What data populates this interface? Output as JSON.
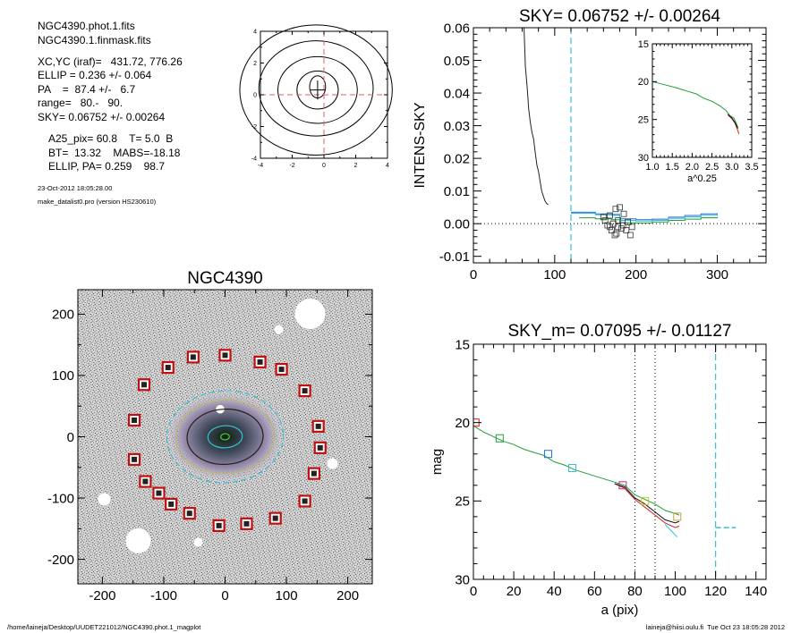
{
  "info": {
    "lines": [
      "NGC4390.phot.1.fits",
      "NGC4390.1.finmask.fits",
      "XC,YC (iraf)=   431.72, 776.26",
      "ELLIP = 0.236 +/- 0.064",
      "PA    =  87.4 +/-   6.7",
      "range=   80.-   90.",
      "SKY= 0.06752 +/- 0.00264",
      "A25_pix= 60.8    T= 5.0  B",
      "BT=  13.32    MABS=-18.18",
      "ELLIP, PA= 0.259    98.7"
    ],
    "date": "23-Oct-2012 18:05:28.00",
    "program": "make_datalist0.pro (version HS230610)"
  },
  "footer": {
    "path": "/home/laineja/Desktop/UUDET221012/NGC4390.phot.1_magplot",
    "user": "laineja@hiisi.oulu.fi  Tue Oct 23 18:05:28 2012"
  },
  "chart_data": [
    {
      "id": "contour",
      "type": "contour",
      "xlim": [
        -4,
        4
      ],
      "ylim": [
        -4,
        4
      ],
      "xticks": [
        -4,
        -2,
        0,
        2,
        4
      ],
      "yticks": [
        -4,
        -2,
        0,
        2,
        4
      ],
      "contours": [
        {
          "cx": -0.4,
          "cy": 0.5,
          "rx": 0.5,
          "ry": 0.7
        },
        {
          "cx": -0.4,
          "cy": 0.3,
          "rx": 1.3,
          "ry": 1.2
        },
        {
          "cx": -0.4,
          "cy": 0.3,
          "rx": 2.5,
          "ry": 2.1
        },
        {
          "cx": -0.5,
          "cy": 0.4,
          "rx": 3.6,
          "ry": 3.0
        },
        {
          "cx": -0.5,
          "cy": 0.3,
          "rx": 4.8,
          "ry": 4.1
        }
      ],
      "crosshair": [
        0,
        0
      ],
      "colors": {
        "line": "#000000",
        "cross": "#e06060"
      }
    },
    {
      "id": "sky",
      "type": "line",
      "title": "SKY= 0.06752 +/- 0.00264",
      "xlabel": "",
      "ylabel": "INTENS-SKY",
      "xlim": [
        0,
        360
      ],
      "ylim": [
        -0.012,
        0.06
      ],
      "xticks": [
        0,
        100,
        200,
        300
      ],
      "yticks": [
        -0.01,
        0.0,
        0.01,
        0.02,
        0.03,
        0.04,
        0.05,
        0.06
      ],
      "ytick_labels": [
        "-0.01",
        "0.00",
        "0.01",
        "0.02",
        "0.03",
        "0.04",
        "0.05",
        "0.06"
      ],
      "vline": 120,
      "hline": 0,
      "profile": {
        "x": [
          62,
          64,
          66,
          68,
          70,
          72,
          74,
          76,
          78,
          80,
          82,
          84,
          86,
          88,
          90,
          92
        ],
        "y": [
          0.062,
          0.048,
          0.042,
          0.035,
          0.031,
          0.028,
          0.026,
          0.022,
          0.018,
          0.016,
          0.013,
          0.01,
          0.0085,
          0.007,
          0.0062,
          0.0058
        ]
      },
      "series": [
        {
          "color": "#1a6fd8",
          "x": [
            120,
            150,
            170,
            180,
            200,
            220,
            240,
            260,
            280,
            300
          ],
          "y": [
            0.0035,
            0.003,
            0.0028,
            0.0015,
            0.0012,
            0.0014,
            0.002,
            0.0025,
            0.003,
            0.0032
          ]
        },
        {
          "color": "#37c0d8",
          "x": [
            120,
            150,
            170,
            180,
            200,
            220,
            240,
            260,
            280,
            300
          ],
          "y": [
            0.0032,
            0.0027,
            0.0025,
            0.001,
            0.0008,
            0.001,
            0.0016,
            0.0021,
            0.0026,
            0.0028
          ]
        },
        {
          "color": "#1f9e3a",
          "x": [
            130,
            150,
            170,
            180,
            200,
            220,
            240,
            260,
            280,
            300
          ],
          "y": [
            0.0018,
            0.0015,
            0.0012,
            0.0003,
            0.0002,
            0.0005,
            0.001,
            0.0014,
            0.0018,
            0.002
          ]
        }
      ],
      "points": [
        [
          160,
          0.002
        ],
        [
          168,
          0.0025
        ],
        [
          175,
          0.0045
        ],
        [
          180,
          0.005
        ],
        [
          185,
          0.003
        ],
        [
          172,
          0.0
        ],
        [
          178,
          -0.001
        ],
        [
          165,
          -0.0005
        ],
        [
          170,
          -0.002
        ],
        [
          176,
          -0.003
        ],
        [
          182,
          -0.0015
        ],
        [
          190,
          0.0005
        ],
        [
          195,
          -0.001
        ],
        [
          188,
          -0.002
        ],
        [
          162,
          0.001
        ],
        [
          174,
          -0.0035
        ],
        [
          193,
          -0.0035
        ],
        [
          178,
          0.001
        ],
        [
          184,
          -0.0005
        ],
        [
          168,
          -0.001
        ]
      ],
      "inset": {
        "xlabel": "a^0.25",
        "xlim": [
          1.0,
          3.5
        ],
        "ylim": [
          30,
          15
        ],
        "xticks": [
          1.0,
          1.5,
          2.0,
          2.5,
          3.0,
          3.5
        ],
        "xtick_labels": [
          "1.0",
          "1.5",
          "2.0",
          "2.5",
          "3.0",
          "3.5"
        ],
        "yticks": [
          15,
          20,
          25,
          30
        ],
        "series": [
          {
            "color": "#1f9e3a",
            "x": [
              1.0,
              1.3,
              1.6,
              1.9,
              2.1,
              2.3,
              2.5,
              2.7,
              2.85,
              2.95,
              3.05,
              3.12,
              3.16
            ],
            "y": [
              20.0,
              20.4,
              20.8,
              21.3,
              21.6,
              22.2,
              22.6,
              23.2,
              23.8,
              24.5,
              24.8,
              25.6,
              26.2
            ]
          },
          {
            "color": "#d62020",
            "x": [
              2.9,
              3.0,
              3.08,
              3.14,
              3.18
            ],
            "y": [
              24.4,
              24.9,
              25.5,
              26.3,
              26.9
            ]
          },
          {
            "color": "#111111",
            "x": [
              2.9,
              3.0,
              3.08,
              3.14
            ],
            "y": [
              24.3,
              24.8,
              25.4,
              26.1
            ]
          }
        ]
      }
    },
    {
      "id": "image",
      "type": "image",
      "title": "NGC4390",
      "xlim": [
        -240,
        240
      ],
      "ylim": [
        -240,
        240
      ],
      "xticks": [
        -200,
        -100,
        0,
        100,
        200
      ],
      "yticks": [
        -200,
        -100,
        0,
        100,
        200
      ],
      "boxes": [
        [
          0,
          133
        ],
        [
          -52,
          130
        ],
        [
          -93,
          113
        ],
        [
          -132,
          85
        ],
        [
          -148,
          27
        ],
        [
          -148,
          -37
        ],
        [
          -130,
          -73
        ],
        [
          -108,
          -92
        ],
        [
          -88,
          -110
        ],
        [
          -58,
          -125
        ],
        [
          -10,
          -145
        ],
        [
          35,
          -142
        ],
        [
          82,
          -133
        ],
        [
          130,
          -105
        ],
        [
          145,
          -60
        ],
        [
          155,
          -18
        ],
        [
          152,
          17
        ],
        [
          130,
          75
        ],
        [
          92,
          110
        ],
        [
          57,
          122
        ]
      ],
      "ellipses": [
        {
          "rx": 95,
          "ry": 75,
          "color": "#37c0d8",
          "dash": true
        },
        {
          "rx": 80,
          "ry": 60,
          "color": "#b9b96a",
          "dash": false
        },
        {
          "rx": 62,
          "ry": 45,
          "color": "#2a1a1a",
          "dash": false
        },
        {
          "rx": 28,
          "ry": 18,
          "color": "#37c0d8",
          "dash": false
        },
        {
          "rx": 7,
          "ry": 5,
          "color": "#40d040",
          "dash": false
        }
      ],
      "colors": {
        "box": "#c01010",
        "field": "#9a9a9a"
      }
    },
    {
      "id": "mag",
      "type": "line",
      "title": "SKY_m=  0.07095 +/- 0.01127",
      "xlabel": "a (pix)",
      "ylabel": "mag",
      "xlim": [
        0,
        145
      ],
      "ylim": [
        30,
        15
      ],
      "xticks": [
        0,
        20,
        40,
        60,
        80,
        100,
        120,
        140
      ],
      "yticks": [
        15,
        20,
        25,
        30
      ],
      "vlines_dotted": [
        80,
        90
      ],
      "vline_dash": 120,
      "hseg": {
        "x": [
          120,
          130
        ],
        "y": 26.7
      },
      "series": [
        {
          "color": "#1f9e3a",
          "x": [
            0,
            5,
            10,
            15,
            20,
            25,
            30,
            35,
            40,
            45,
            50,
            55,
            60,
            65,
            70,
            75,
            80,
            85,
            90,
            95,
            100,
            102
          ],
          "y": [
            20.2,
            20.6,
            20.9,
            21.2,
            21.4,
            21.7,
            21.9,
            22.1,
            22.5,
            22.7,
            23.0,
            23.2,
            23.4,
            23.6,
            23.8,
            24.0,
            24.6,
            24.9,
            25.2,
            25.6,
            25.8,
            25.9
          ]
        },
        {
          "color": "#d62020",
          "x": [
            70,
            75,
            80,
            85,
            90,
            95,
            100,
            102
          ],
          "y": [
            23.9,
            24.2,
            24.9,
            25.4,
            25.9,
            26.4,
            26.7,
            26.6
          ]
        },
        {
          "color": "#111111",
          "x": [
            70,
            75,
            80,
            85,
            90,
            95,
            100,
            102
          ],
          "y": [
            23.9,
            24.1,
            24.8,
            25.2,
            25.7,
            26.2,
            26.4,
            26.3
          ]
        },
        {
          "color": "#2bc3e0",
          "x": [
            95,
            98,
            101
          ],
          "y": [
            26.5,
            26.9,
            27.3
          ]
        }
      ],
      "markers": [
        {
          "x": 1,
          "y": 20.0,
          "color": "#d62020"
        },
        {
          "x": 13,
          "y": 21.0,
          "color": "#1f9e3a"
        },
        {
          "x": 37,
          "y": 22.0,
          "color": "#1a6fd8"
        },
        {
          "x": 49,
          "y": 22.9,
          "color": "#37c0d8"
        },
        {
          "x": 74,
          "y": 24.0,
          "color": "#b03080"
        },
        {
          "x": 85,
          "y": 25.0,
          "color": "#c8c828"
        },
        {
          "x": 101,
          "y": 26.0,
          "color": "#c8a040"
        }
      ]
    }
  ]
}
